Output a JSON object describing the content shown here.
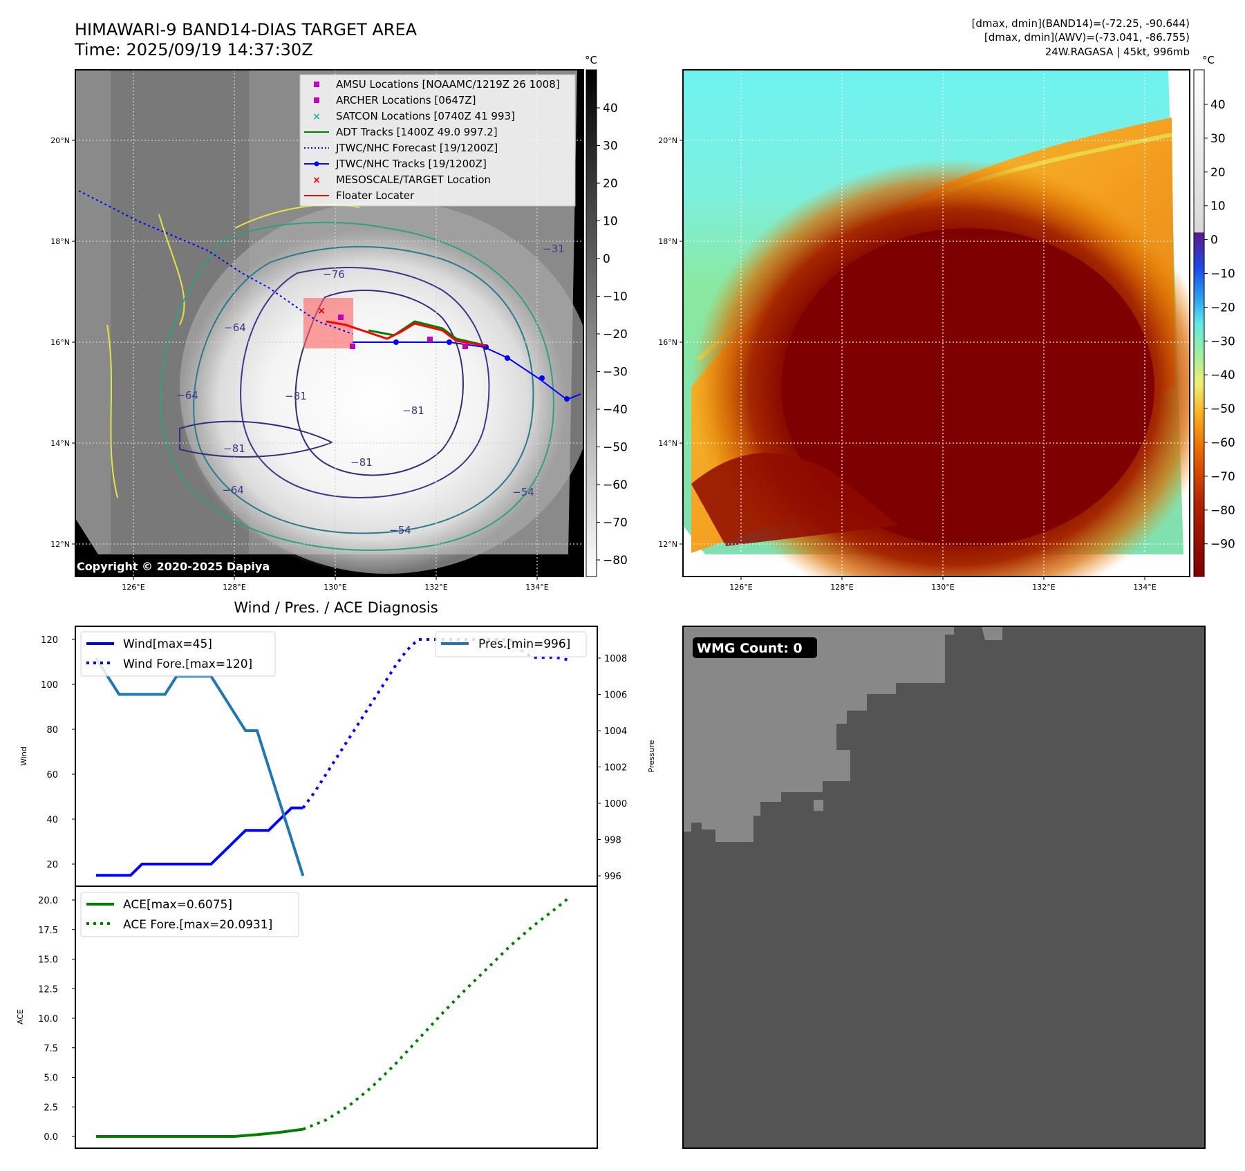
{
  "header": {
    "title_line1": "HIMAWARI-9 BAND14-DIAS TARGET AREA",
    "title_line2": "Time: 2025/09/19 14:37:30Z",
    "info_line1": "[dmax, dmin](BAND14)=(-72.25, -90.644)",
    "info_line2": "[dmax, dmin](AWV)=(-73.041, -86.755)",
    "info_line3": "24W.RAGASA | 45kt, 996mb"
  },
  "map_axes": {
    "lat_ticks": [
      "20°N",
      "18°N",
      "16°N",
      "14°N",
      "12°N"
    ],
    "lon_ticks": [
      "126°E",
      "128°E",
      "130°E",
      "132°E",
      "134°E"
    ],
    "gridlines": true
  },
  "left_map": {
    "copyright": "Copyright © 2020-2025 Dapiya",
    "colorbar_unit": "°C",
    "colorbar_ticks": [
      "40",
      "30",
      "20",
      "10",
      "0",
      "−10",
      "−20",
      "−30",
      "−40",
      "−50",
      "−60",
      "−70",
      "−80"
    ],
    "contour_labels": [
      "−76",
      "−81",
      "−81",
      "−81",
      "−81",
      "−64",
      "−64",
      "−54",
      "−64",
      "−54",
      "−31"
    ],
    "legend": [
      {
        "label": "AMSU Locations [NOAAMC/1219Z 26 1008]",
        "color": "#c000c0",
        "marker": "square"
      },
      {
        "label": "ARCHER Locations [0647Z]",
        "color": "#c000c0",
        "marker": "square"
      },
      {
        "label": "SATCON Locations [0740Z 41 993]",
        "color": "#20b0b0",
        "marker": "x"
      },
      {
        "label": "ADT Tracks [1400Z 49.0 997.2]",
        "color": "#008000",
        "marker": "line"
      },
      {
        "label": "JTWC/NHC Forecast [19/1200Z]",
        "color": "#0000ff",
        "marker": "dotted"
      },
      {
        "label": "JTWC/NHC Tracks [19/1200Z]",
        "color": "#0000ff",
        "marker": "line-dot"
      },
      {
        "label": "MESOSCALE/TARGET Location",
        "color": "#ff0000",
        "marker": "x"
      },
      {
        "label": "Floater Locater",
        "color": "#ff0000",
        "marker": "line"
      }
    ]
  },
  "right_map": {
    "colorbar_unit": "°C",
    "colorbar_ticks": [
      "40",
      "30",
      "20",
      "10",
      "0",
      "−10",
      "−20",
      "−30",
      "−40",
      "−50",
      "−60",
      "−70",
      "−80",
      "−90"
    ]
  },
  "wind_panel": {
    "title": "Wind / Pres. / ACE Diagnosis",
    "ylabel_left": "Wind",
    "ylabel_right": "Pressure",
    "left_ticks": [
      "120",
      "100",
      "80",
      "60",
      "40",
      "20"
    ],
    "right_ticks": [
      "1008",
      "1006",
      "1004",
      "1002",
      "1000",
      "998",
      "996"
    ],
    "legend_wind": "Wind[max=45]",
    "legend_wind_fore": "Wind Fore.[max=120]",
    "legend_pres": "Pres.[min=996]"
  },
  "ace_panel": {
    "ylabel": "ACE",
    "ticks": [
      "20.0",
      "17.5",
      "15.0",
      "12.5",
      "10.0",
      "7.5",
      "5.0",
      "2.5",
      "0.0"
    ],
    "legend_ace": "ACE[max=0.6075]",
    "legend_ace_fore": "ACE Fore.[max=20.0931]"
  },
  "wmg_panel": {
    "label": "WMG Count: 0"
  },
  "chart_data": [
    {
      "type": "line",
      "x": [
        0,
        1,
        2,
        3,
        4,
        5,
        6,
        7,
        8,
        9,
        10,
        11,
        12,
        13,
        14,
        15,
        16,
        17,
        18,
        19,
        20,
        21,
        22,
        23,
        24,
        25,
        26,
        27,
        28,
        29,
        30,
        31,
        32,
        33,
        34,
        35,
        36,
        37,
        38,
        39,
        40,
        41
      ],
      "series": [
        {
          "name": "Wind[max=45]",
          "axis": "left",
          "x": [
            0,
            1,
            2,
            3,
            4,
            5,
            6,
            7,
            8,
            9,
            10,
            11,
            12,
            13,
            14,
            15,
            16,
            17,
            18
          ],
          "values": [
            15,
            15,
            15,
            15,
            20,
            20,
            20,
            20,
            20,
            20,
            20,
            25,
            30,
            35,
            35,
            35,
            40,
            45,
            45
          ]
        },
        {
          "name": "Wind Fore.[max=120]",
          "axis": "left",
          "x": [
            18,
            19,
            20,
            21,
            22,
            23,
            24,
            25,
            26,
            27,
            28,
            29,
            30,
            31,
            32,
            33,
            34,
            35,
            36,
            37,
            38,
            39,
            40,
            41
          ],
          "values": [
            45,
            52,
            60,
            68,
            76,
            84,
            92,
            100,
            108,
            115,
            120,
            120,
            120,
            120,
            120,
            120,
            120,
            120,
            120,
            115,
            112,
            112,
            112,
            111
          ]
        },
        {
          "name": "Pres.[min=996]",
          "axis": "right",
          "x": [
            0,
            1,
            2,
            3,
            4,
            5,
            6,
            7,
            8,
            9,
            10,
            11,
            12,
            13,
            14,
            15,
            16,
            17,
            18
          ],
          "values": [
            1008,
            1007,
            1006,
            1006,
            1006,
            1006,
            1006,
            1007,
            1007,
            1007,
            1007,
            1006,
            1005,
            1004,
            1004,
            1002,
            1000,
            998,
            996
          ]
        }
      ],
      "ylim": [
        15,
        120
      ],
      "ylim_right": [
        996,
        1008
      ]
    },
    {
      "type": "line",
      "series": [
        {
          "name": "ACE[max=0.6075]",
          "x": [
            0,
            2,
            4,
            6,
            8,
            10,
            12,
            14,
            16,
            18
          ],
          "values": [
            0,
            0,
            0,
            0,
            0,
            0,
            0,
            0.15,
            0.35,
            0.6075
          ]
        },
        {
          "name": "ACE Fore.[max=20.0931]",
          "x": [
            18,
            20,
            22,
            24,
            26,
            28,
            30,
            32,
            34,
            36,
            38,
            40,
            41
          ],
          "values": [
            0.6075,
            1.4,
            2.6,
            4.2,
            6.1,
            8.2,
            10.3,
            12.3,
            14.2,
            16.1,
            17.8,
            19.3,
            20.0931
          ]
        }
      ],
      "ylim": [
        -0.8,
        20.7
      ]
    }
  ]
}
